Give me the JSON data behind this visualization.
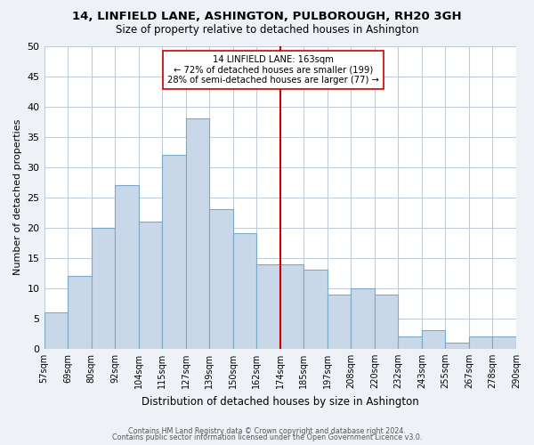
{
  "title": "14, LINFIELD LANE, ASHINGTON, PULBOROUGH, RH20 3GH",
  "subtitle": "Size of property relative to detached houses in Ashington",
  "xlabel": "Distribution of detached houses by size in Ashington",
  "ylabel": "Number of detached properties",
  "footer_lines": [
    "Contains HM Land Registry data © Crown copyright and database right 2024.",
    "Contains public sector information licensed under the Open Government Licence v3.0."
  ],
  "bin_labels": [
    "57sqm",
    "69sqm",
    "80sqm",
    "92sqm",
    "104sqm",
    "115sqm",
    "127sqm",
    "139sqm",
    "150sqm",
    "162sqm",
    "174sqm",
    "185sqm",
    "197sqm",
    "208sqm",
    "220sqm",
    "232sqm",
    "243sqm",
    "255sqm",
    "267sqm",
    "278sqm",
    "290sqm"
  ],
  "bar_heights": [
    6,
    12,
    20,
    27,
    21,
    32,
    38,
    23,
    19,
    14,
    14,
    13,
    9,
    10,
    9,
    2,
    3,
    1,
    2,
    2
  ],
  "bar_color": "#c8d8e8",
  "bar_edge_color": "#7aaac8",
  "vline_color": "#cc0000",
  "vline_position": 9.5,
  "annotation_line1": "14 LINFIELD LANE: 163sqm",
  "annotation_line2": "← 72% of detached houses are smaller (199)",
  "annotation_line3": "28% of semi-detached houses are larger (77) →",
  "ylim": [
    0,
    50
  ],
  "yticks": [
    0,
    5,
    10,
    15,
    20,
    25,
    30,
    35,
    40,
    45,
    50
  ],
  "bg_color": "#eef2f7",
  "plot_bg_color": "#ffffff",
  "grid_color": "#c0ccd8"
}
